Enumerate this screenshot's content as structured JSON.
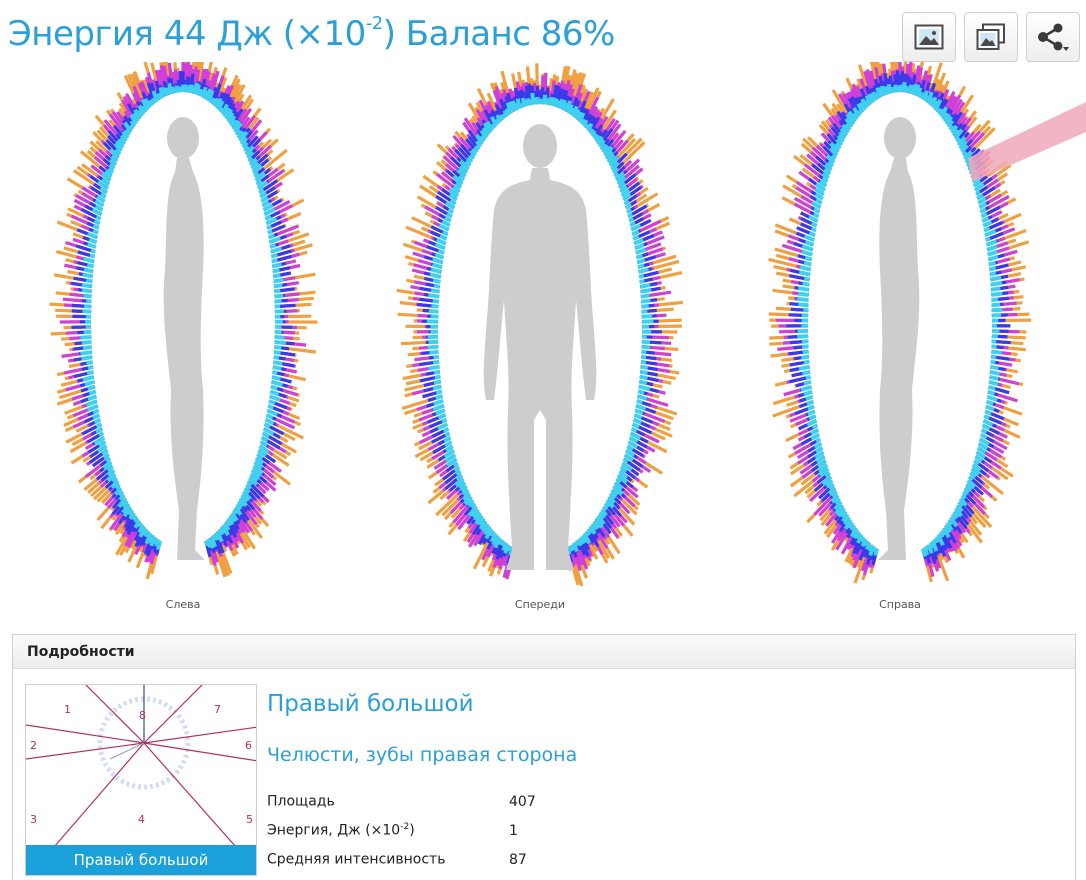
{
  "header": {
    "title_prefix": "Энергия 44 Дж (×10",
    "title_exp": "-2",
    "title_suffix": ") Баланс 86%"
  },
  "toolbar": {
    "buttons": [
      {
        "icon": "image-icon"
      },
      {
        "icon": "gallery-icon"
      },
      {
        "icon": "share-icon"
      }
    ]
  },
  "views": [
    {
      "label": "Слева"
    },
    {
      "label": "Спереди"
    },
    {
      "label": "Справа"
    }
  ],
  "details": {
    "header": "Подробности",
    "sector_numbers": [
      "1",
      "8",
      "7",
      "2",
      "6",
      "3",
      "5",
      "4"
    ],
    "sector_caption": "Правый большой",
    "zone_title": "Правый большой",
    "zone_subtitle": "Челюсти, зубы правая сторона",
    "metrics": [
      {
        "label_prefix": "Площадь",
        "label_exp": "",
        "label_suffix": "",
        "value": "407"
      },
      {
        "label_prefix": "Энергия, Дж (×10",
        "label_exp": "-2",
        "label_suffix": ")",
        "value": "1"
      },
      {
        "label_prefix": "Средняя интенсивность",
        "label_exp": "",
        "label_suffix": "",
        "value": "87"
      }
    ]
  },
  "colors": {
    "accent": "#2a9fd8",
    "caption_bg": "#1ba0d9",
    "aura_cyan": "#3fd0f0",
    "aura_blue": "#3a3ae8",
    "aura_magenta": "#d040d8",
    "aura_orange": "#f0a040",
    "sector_line": "#b03060",
    "silhouette": "#cdcdcd"
  }
}
